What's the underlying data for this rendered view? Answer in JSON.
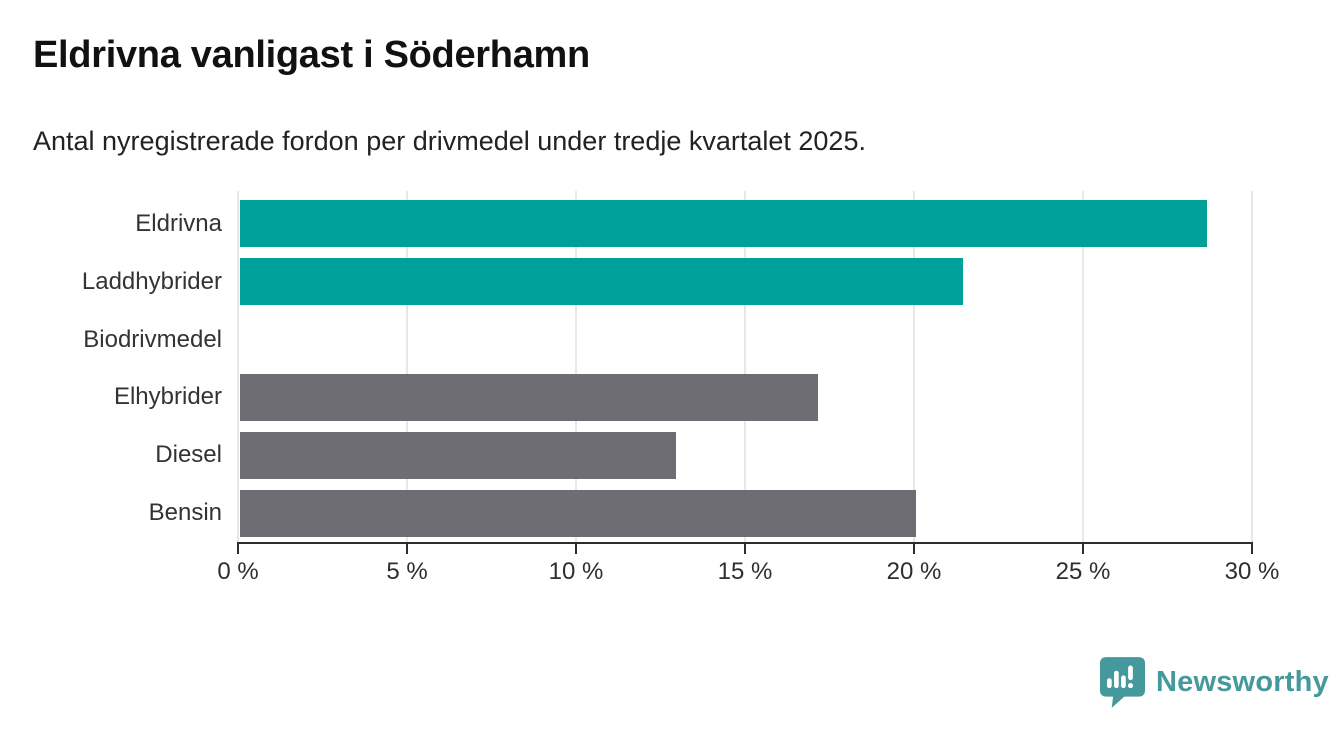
{
  "header": {
    "title": "Eldrivna vanligast i Söderhamn",
    "subtitle": "Antal nyregistrerade fordon per drivmedel under tredje kvartalet 2025."
  },
  "chart_data": {
    "type": "bar",
    "orientation": "horizontal",
    "title": "Eldrivna vanligast i Söderhamn",
    "subtitle": "Antal nyregistrerade fordon per drivmedel under tredje kvartalet 2025.",
    "categories": [
      "Eldrivna",
      "Laddhybrider",
      "Biodrivmedel",
      "Elhybrider",
      "Diesel",
      "Bensin"
    ],
    "values": [
      28.6,
      21.4,
      0,
      17.1,
      12.9,
      20.0
    ],
    "unit": "%",
    "bar_colors": [
      "#00a09a",
      "#00a09a",
      "#6d6d73",
      "#6d6d73",
      "#6d6d73",
      "#6d6d73"
    ],
    "xlabel": "",
    "ylabel": "",
    "xlim": [
      0,
      30
    ],
    "xticks": [
      0,
      5,
      10,
      15,
      20,
      25,
      30
    ],
    "xtick_labels": [
      "0 %",
      "5 %",
      "10 %",
      "15 %",
      "20 %",
      "25 %",
      "30 %"
    ],
    "grid": true,
    "legend": false
  },
  "colors": {
    "highlight": "#00a09a",
    "neutral": "#6d6d73",
    "grid": "#e7e7e7",
    "axis": "#2d2d2d",
    "brand": "#45989b"
  },
  "footer": {
    "brand": "Newsworthy"
  }
}
